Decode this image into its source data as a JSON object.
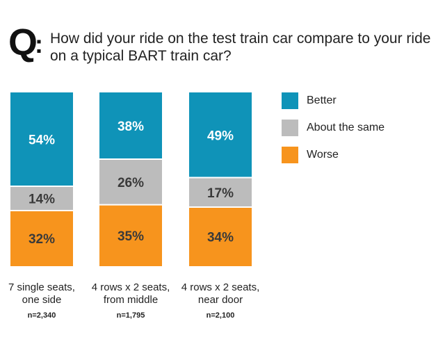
{
  "question": {
    "prefix": "Q",
    "text": "How did your ride on the test train car compare to your ride on a typical BART train car?"
  },
  "chart_data": {
    "type": "bar",
    "stacked": true,
    "normalized_percent": true,
    "categories": [
      {
        "label_line1": "7 single seats,",
        "label_line2": "one side",
        "n": "n=2,340"
      },
      {
        "label_line1": "4 rows x 2 seats,",
        "label_line2": "from middle",
        "n": "n=1,795"
      },
      {
        "label_line1": "4 rows x 2 seats,",
        "label_line2": "near door",
        "n": "n=2,100"
      }
    ],
    "series": [
      {
        "name": "Worse",
        "color": "#f7941d",
        "values": [
          32,
          35,
          34
        ],
        "labels": [
          "32%",
          "35%",
          "34%"
        ]
      },
      {
        "name": "About the same",
        "color": "#bcbcbc",
        "values": [
          14,
          26,
          17
        ],
        "labels": [
          "14%",
          "26%",
          "17%"
        ]
      },
      {
        "name": "Better",
        "color": "#0f93b8",
        "values": [
          54,
          38,
          49
        ],
        "labels": [
          "54%",
          "38%",
          "49%"
        ]
      }
    ],
    "legend_order": [
      "Better",
      "About the same",
      "Worse"
    ],
    "legend_position": "right",
    "grid": false
  }
}
